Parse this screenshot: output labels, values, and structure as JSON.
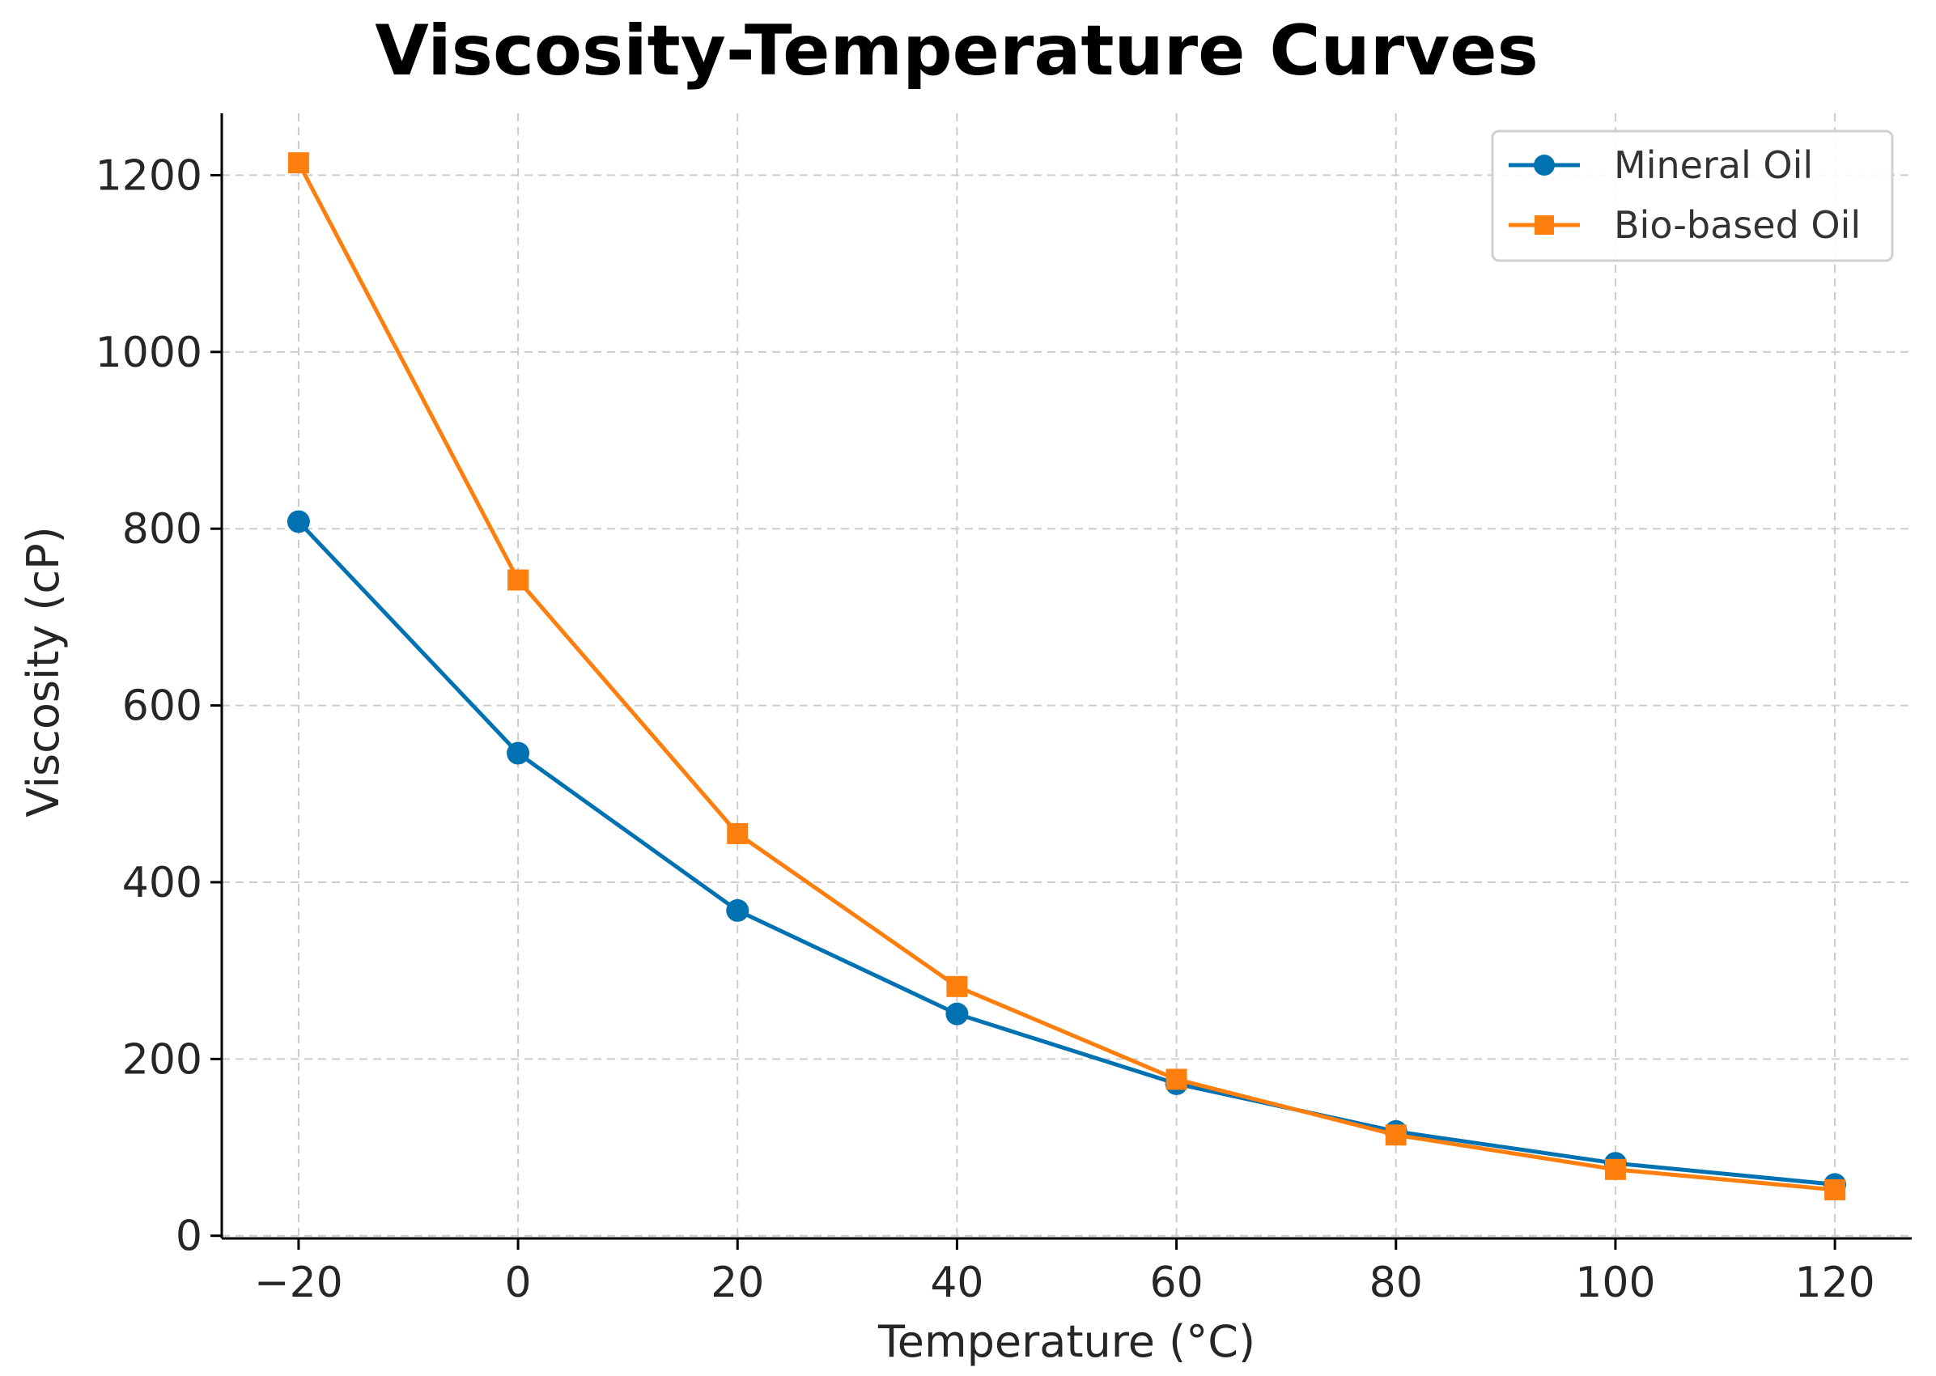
{
  "chart_data": {
    "type": "line",
    "title": "Viscosity-Temperature Curves",
    "xlabel": "Temperature (°C)",
    "ylabel": "Viscosity (cP)",
    "x": [
      -20,
      0,
      20,
      40,
      60,
      80,
      100,
      120
    ],
    "xticks": [
      -20,
      0,
      20,
      40,
      60,
      80,
      100,
      120
    ],
    "xtick_labels": [
      "−20",
      "0",
      "20",
      "40",
      "60",
      "80",
      "100",
      "120"
    ],
    "yticks": [
      0,
      200,
      400,
      600,
      800,
      1000,
      1200
    ],
    "ytick_labels": [
      "0",
      "200",
      "400",
      "600",
      "800",
      "1000",
      "1200"
    ],
    "xlim": [
      -27,
      127
    ],
    "ylim": [
      -3,
      1270
    ],
    "grid": true,
    "legend_position": "top-right",
    "series": [
      {
        "name": "Mineral Oil",
        "color": "#0072b2",
        "marker": "circle",
        "values": [
          808,
          546,
          368,
          251,
          172,
          118,
          82,
          58
        ]
      },
      {
        "name": "Bio-based Oil",
        "color": "#ff7f0e",
        "marker": "square",
        "values": [
          1214,
          742,
          455,
          282,
          177,
          114,
          75,
          52
        ]
      }
    ]
  }
}
